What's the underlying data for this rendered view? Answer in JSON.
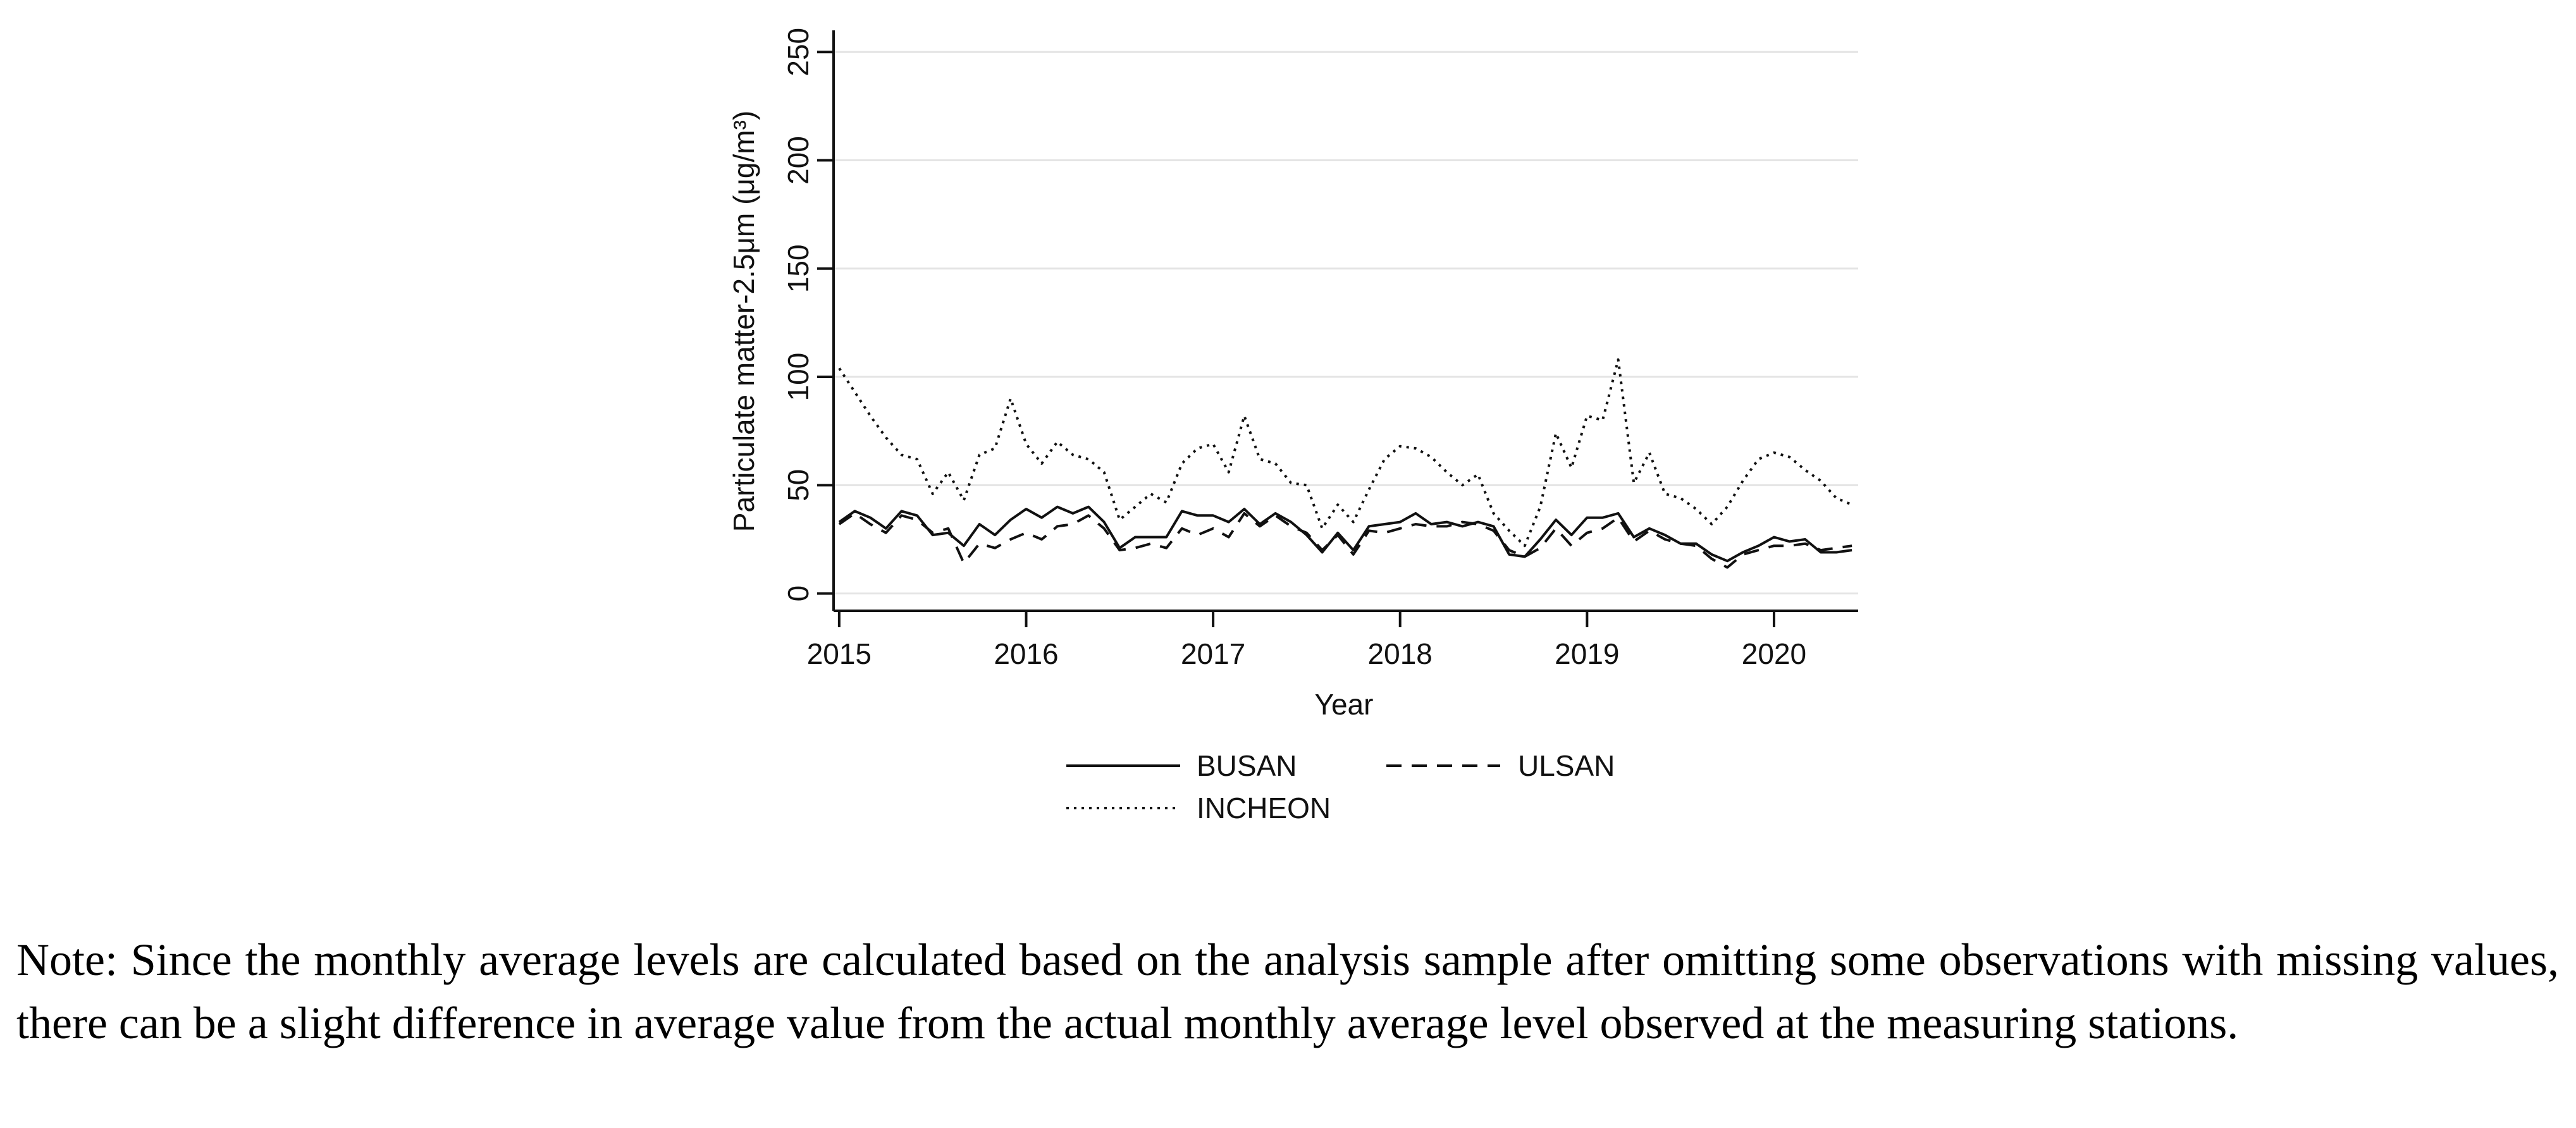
{
  "chart_data": {
    "type": "line",
    "title": "",
    "xlabel": "Year",
    "ylabel": "Particulate matter-2.5μm (μg/m³)",
    "xlim": [
      2014.97,
      2020.45
    ],
    "ylim": [
      -8,
      260
    ],
    "x_ticks": [
      2015,
      2016,
      2017,
      2018,
      2019,
      2020
    ],
    "x_tick_labels": [
      "2015",
      "2016",
      "2017",
      "2018",
      "2019",
      "2020"
    ],
    "y_ticks": [
      0,
      50,
      100,
      150,
      200,
      250
    ],
    "y_tick_labels": [
      "0",
      "50",
      "100",
      "150",
      "200",
      "250"
    ],
    "grid": true,
    "legend_position": "bottom",
    "x_start": 2015.0,
    "x_step": 0.0833333,
    "series": [
      {
        "name": "BUSAN",
        "style": "solid",
        "values": [
          33,
          38,
          35,
          30,
          38,
          36,
          27,
          28,
          22,
          32,
          27,
          34,
          39,
          35,
          40,
          37,
          40,
          33,
          21,
          26,
          26,
          26,
          38,
          36,
          36,
          33,
          39,
          32,
          37,
          33,
          27,
          19,
          28,
          20,
          31,
          32,
          33,
          37,
          32,
          33,
          31,
          33,
          31,
          18,
          17,
          25,
          34,
          27,
          35,
          35,
          37,
          26,
          30,
          27,
          23,
          23,
          18,
          15,
          19,
          22,
          26,
          24,
          25,
          19,
          19,
          20
        ]
      },
      {
        "name": "ULSAN",
        "style": "dashed",
        "values": [
          32,
          37,
          32,
          28,
          36,
          34,
          28,
          30,
          14,
          23,
          21,
          25,
          28,
          25,
          31,
          32,
          36,
          30,
          20,
          21,
          23,
          21,
          30,
          27,
          30,
          26,
          37,
          31,
          36,
          31,
          28,
          20,
          27,
          18,
          29,
          28,
          30,
          32,
          31,
          31,
          33,
          32,
          29,
          20,
          17,
          21,
          30,
          22,
          28,
          30,
          35,
          24,
          29,
          25,
          23,
          22,
          16,
          12,
          18,
          20,
          22,
          22,
          23,
          20,
          21,
          22
        ]
      },
      {
        "name": "INCHEON",
        "style": "dotted",
        "values": [
          104,
          93,
          82,
          72,
          64,
          62,
          46,
          56,
          43,
          64,
          67,
          90,
          69,
          60,
          70,
          64,
          62,
          56,
          34,
          40,
          46,
          42,
          60,
          67,
          69,
          56,
          82,
          62,
          60,
          51,
          50,
          30,
          41,
          33,
          48,
          62,
          68,
          67,
          63,
          56,
          50,
          55,
          37,
          29,
          22,
          40,
          74,
          58,
          82,
          80,
          108,
          51,
          65,
          46,
          44,
          39,
          32,
          40,
          52,
          62,
          65,
          63,
          57,
          52,
          44,
          41
        ]
      }
    ]
  },
  "note": "Note: Since the monthly average levels are calculated based on the analysis sample after omitting some observations with missing values, there can be a slight difference in average value from the actual monthly average level observed at the measuring stations."
}
